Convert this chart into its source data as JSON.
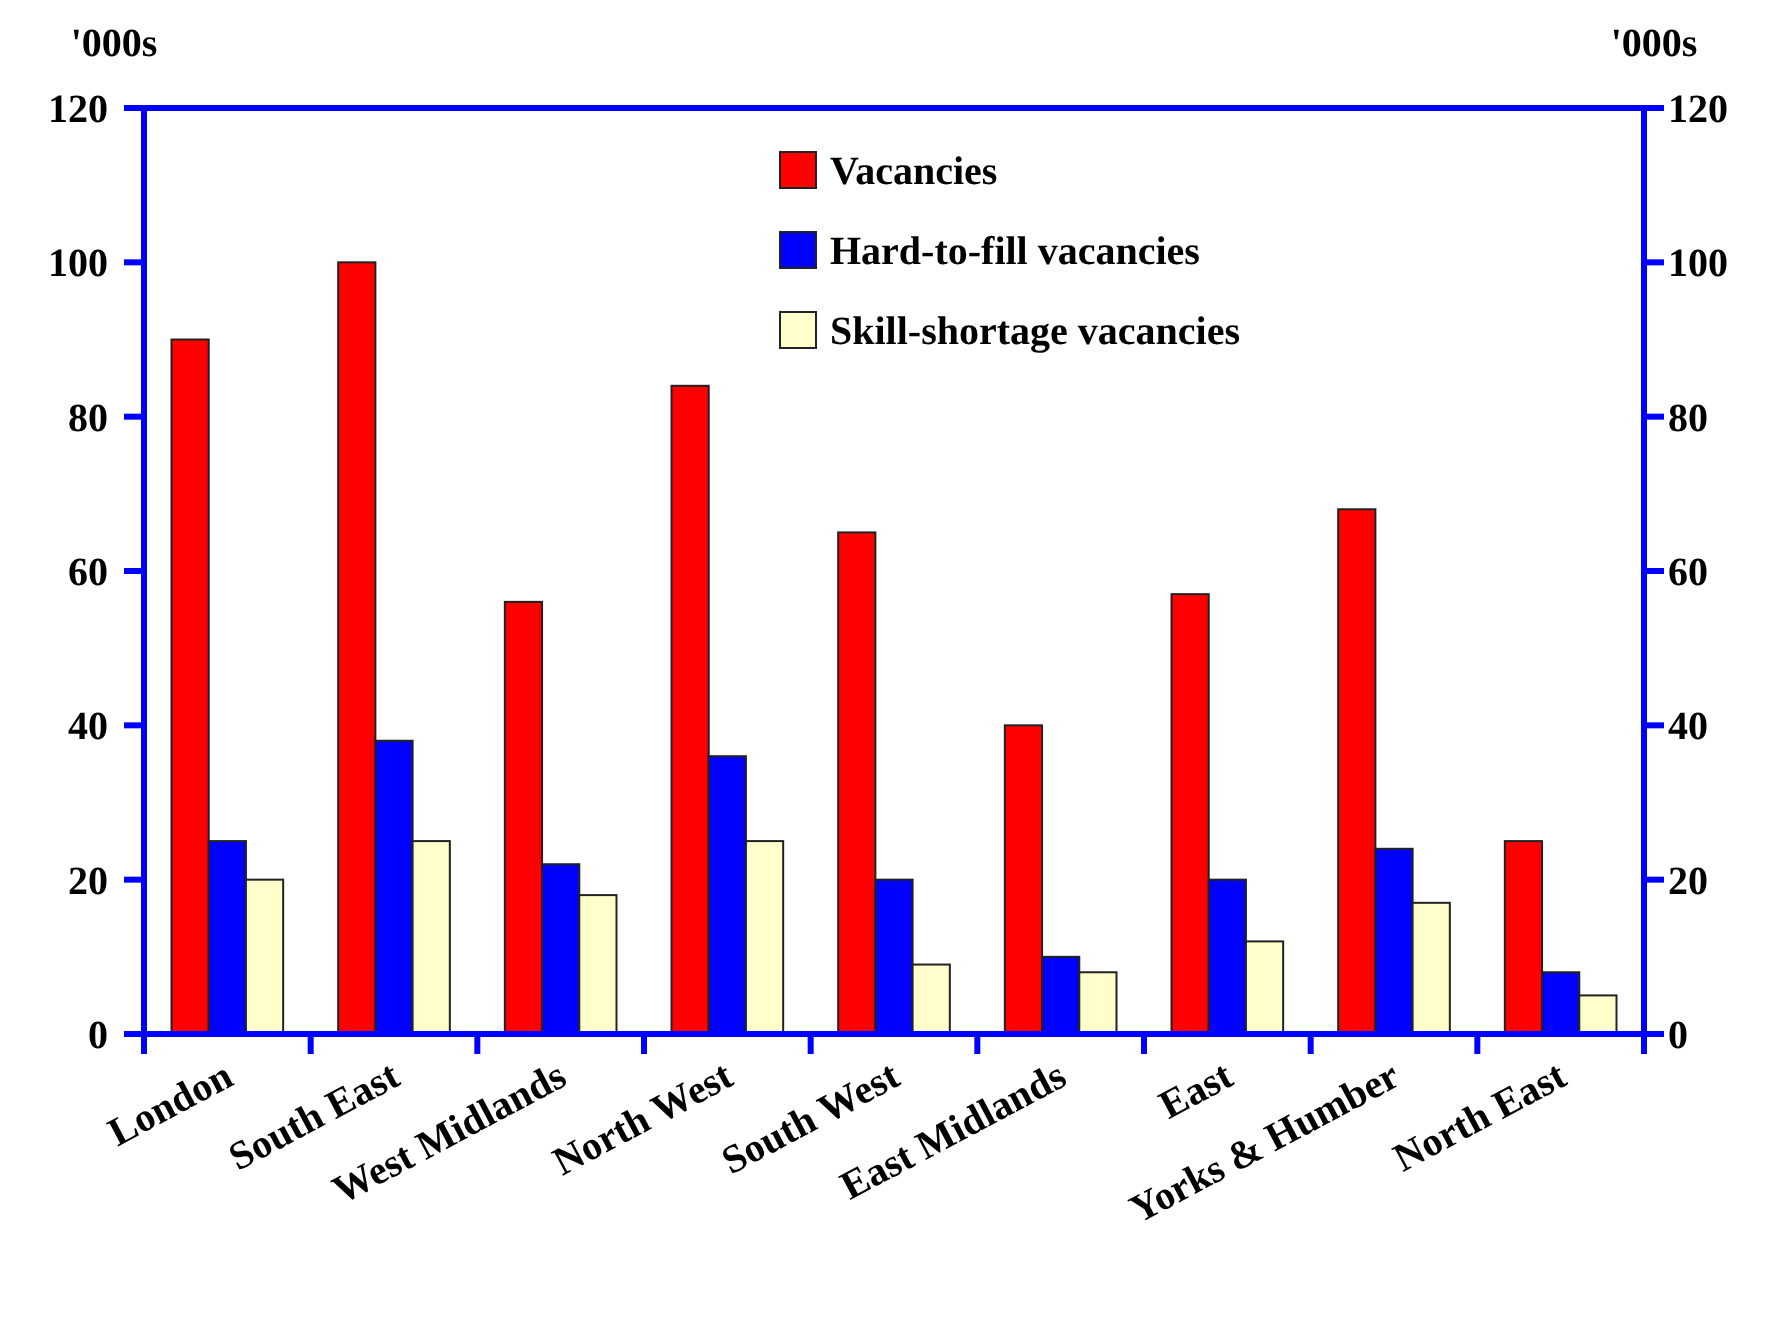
{
  "chart_data": {
    "type": "bar",
    "ylabel": "'000s",
    "y2label": "'000s",
    "categories": [
      "London",
      "South East",
      "West Midlands",
      "North West",
      "South West",
      "East Midlands",
      "East",
      "Yorks & Humber",
      "North East"
    ],
    "series": [
      {
        "name": "Vacancies",
        "color": "#ff0000",
        "values": [
          90,
          100,
          56,
          84,
          65,
          40,
          57,
          68,
          25
        ]
      },
      {
        "name": "Hard-to-fill vacancies",
        "color": "#0000ff",
        "values": [
          25,
          38,
          22,
          36,
          20,
          10,
          20,
          24,
          8
        ]
      },
      {
        "name": "Skill-shortage vacancies",
        "color": "#ffffcc",
        "values": [
          20,
          25,
          18,
          25,
          9,
          8,
          12,
          17,
          5
        ]
      }
    ],
    "ylim": [
      0,
      120
    ],
    "yticks": [
      0,
      20,
      40,
      60,
      80,
      100,
      120
    ],
    "y2lim": [
      0,
      120
    ],
    "y2ticks": [
      0,
      20,
      40,
      60,
      80,
      100,
      120
    ],
    "legend": "top"
  }
}
